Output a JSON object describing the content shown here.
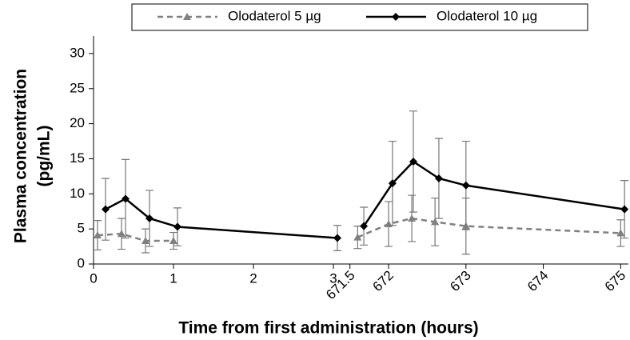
{
  "chart_data": {
    "type": "line",
    "y_label": [
      "Plasma concentration",
      "(pg/mL)"
    ],
    "x_label": "Time from first administration (hours)",
    "ylim": [
      0,
      32.5
    ],
    "yticks": [
      0,
      5,
      10,
      15,
      20,
      25,
      30
    ],
    "xlim": [
      [
        0,
        3.1
      ],
      [
        671.4,
        675.1
      ]
    ],
    "xticks": [
      0,
      1,
      2,
      3,
      671.5,
      672,
      673,
      674,
      675
    ],
    "legend": "top",
    "series": [
      {
        "name": "Olodaterol 5 µg",
        "color": "#808080",
        "dash": true,
        "marker": "triangle",
        "x": [
          0.05,
          0.35,
          0.65,
          1.0,
          671.6,
          672.0,
          672.3,
          672.6,
          673.0,
          675.0
        ],
        "values": [
          4.1,
          4.3,
          3.3,
          3.3,
          3.8,
          5.7,
          6.5,
          6.0,
          5.4,
          4.4
        ],
        "errors": [
          2.1,
          2.2,
          1.7,
          1.2,
          1.6,
          3.2,
          3.3,
          3.4,
          4.0,
          1.9
        ]
      },
      {
        "name": "Olodaterol 10 µg",
        "color": "#000000",
        "dash": false,
        "marker": "diamond",
        "x": [
          0.15,
          0.4,
          0.7,
          1.05,
          3.05,
          671.68,
          672.05,
          672.32,
          672.65,
          673.0,
          675.05
        ],
        "values": [
          7.8,
          9.3,
          6.5,
          5.3,
          3.7,
          5.4,
          11.5,
          14.6,
          12.2,
          11.2,
          7.8
        ],
        "errors": [
          4.4,
          5.6,
          4.0,
          2.7,
          1.8,
          2.7,
          6.0,
          7.2,
          5.7,
          6.3,
          4.1
        ]
      }
    ]
  }
}
